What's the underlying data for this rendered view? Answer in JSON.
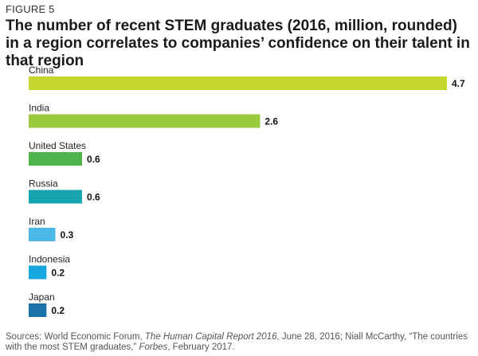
{
  "figure_label": "FIGURE 5",
  "title": "The number of recent STEM graduates (2016, million, rounded) in a region correlates to companies’ confidence on their talent in that region",
  "chart_data": {
    "type": "bar",
    "orientation": "horizontal",
    "categories": [
      "China",
      "India",
      "United States",
      "Russia",
      "Iran",
      "Indonesia",
      "Japan"
    ],
    "values": [
      4.7,
      2.6,
      0.6,
      0.6,
      0.3,
      0.2,
      0.2
    ],
    "value_labels": [
      "4.7",
      "2.6",
      "0.6",
      "0.6",
      "0.3",
      "0.2",
      "0.2"
    ],
    "colors": [
      "#c4d62e",
      "#9bc93c",
      "#4db34b",
      "#16a4b0",
      "#4cb8e6",
      "#16a6e0",
      "#1b72a8"
    ],
    "xlim": [
      0,
      4.7
    ],
    "grid": false,
    "legend": "none"
  },
  "source": {
    "prefix": "Sources: World Economic Forum, ",
    "italic1": "The Human Capital Report 2016",
    "mid": ", June 28, 2016; Niall McCarthy, “The countries with the most STEM graduates,” ",
    "italic2": "Forbes",
    "suffix": ", February 2017."
  }
}
